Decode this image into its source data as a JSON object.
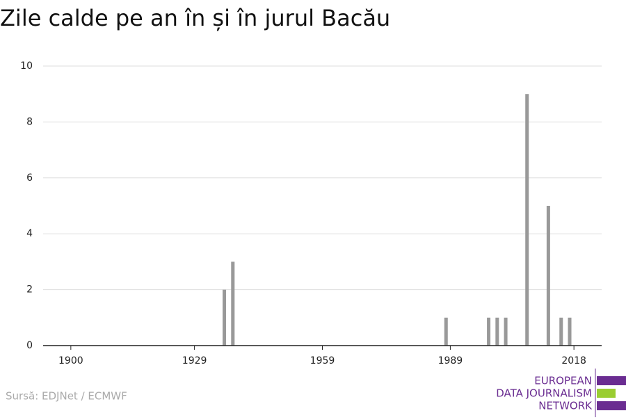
{
  "chart_data": {
    "type": "bar",
    "title": "Zile calde pe an în și în jurul Bacău",
    "x": [
      1936,
      1938,
      1988,
      1998,
      2000,
      2002,
      2007,
      2012,
      2015,
      2017
    ],
    "values": [
      2,
      3,
      1,
      1,
      1,
      1,
      9,
      5,
      1,
      1
    ],
    "color": "#999999",
    "xlim": [
      1893.5,
      2024.5
    ],
    "xticks": [
      1900,
      1929,
      1959,
      1989,
      2018
    ],
    "ylim": [
      0,
      10
    ],
    "yticks": [
      0,
      2,
      4,
      6,
      8,
      10
    ],
    "grid": true,
    "source": "Sursă: EDJNet / ECMWF",
    "logo": [
      "EUROPEAN",
      "DATA JOURNALISM",
      "NETWORK"
    ]
  }
}
